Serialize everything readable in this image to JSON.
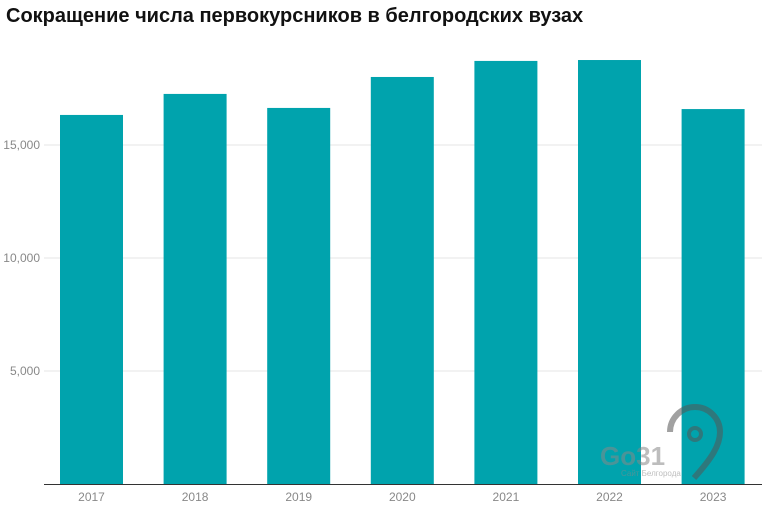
{
  "chart_data": {
    "type": "bar",
    "title": "Сокращение числа первокурсников в белгородских вузах",
    "categories": [
      "2017",
      "2018",
      "2019",
      "2020",
      "2021",
      "2022",
      "2023"
    ],
    "values": [
      16330,
      17260,
      16640,
      18010,
      18720,
      18760,
      16590
    ],
    "xlabel": "",
    "ylabel": "",
    "ylim": [
      0,
      20000
    ],
    "yticks": [
      5000,
      10000,
      15000
    ],
    "ytick_labels": [
      "5,000",
      "10,000",
      "15,000"
    ],
    "grid": true,
    "bar_color": "#00a3ad"
  },
  "watermark": {
    "logo": "Go31",
    "tagline": "Сайт Белгорода"
  }
}
